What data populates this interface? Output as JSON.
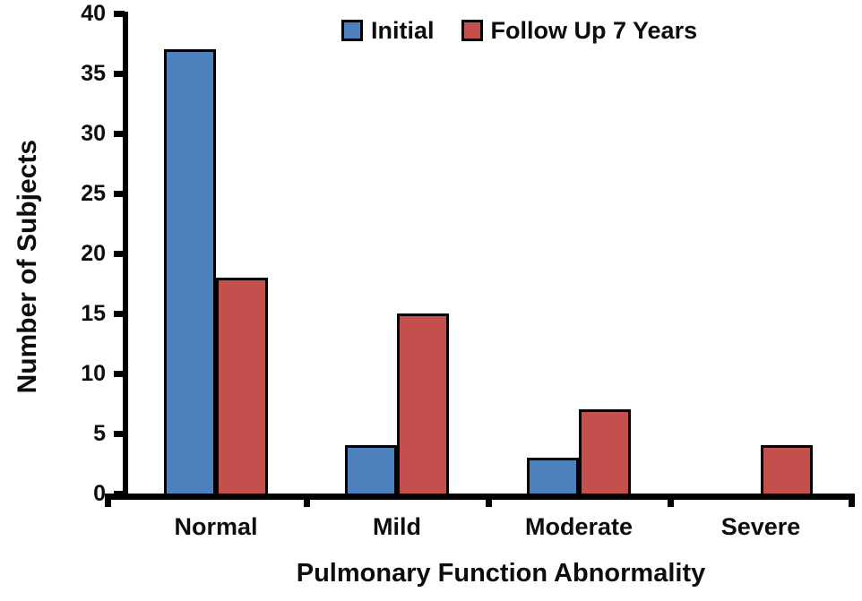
{
  "chart_data": {
    "type": "bar",
    "title": "",
    "xlabel": "Pulmonary Function Abnormality",
    "ylabel": "Number of Subjects",
    "categories": [
      "Normal",
      "Mild",
      "Moderate",
      "Severe"
    ],
    "series": [
      {
        "name": "Initial",
        "color": "#4d81bd",
        "values": [
          37,
          4,
          3,
          0
        ]
      },
      {
        "name": "Follow Up 7 Years",
        "color": "#c4504d",
        "values": [
          18,
          15,
          7,
          4
        ]
      }
    ],
    "ylim": [
      0,
      40
    ],
    "yticks": [
      0,
      5,
      10,
      15,
      20,
      25,
      30,
      35,
      40
    ],
    "legend_position": "top",
    "grid": false,
    "colors": {
      "axis": "#000000",
      "bar_border": "#000000",
      "text": "#0d0d0d",
      "background": "#ffffff"
    }
  }
}
